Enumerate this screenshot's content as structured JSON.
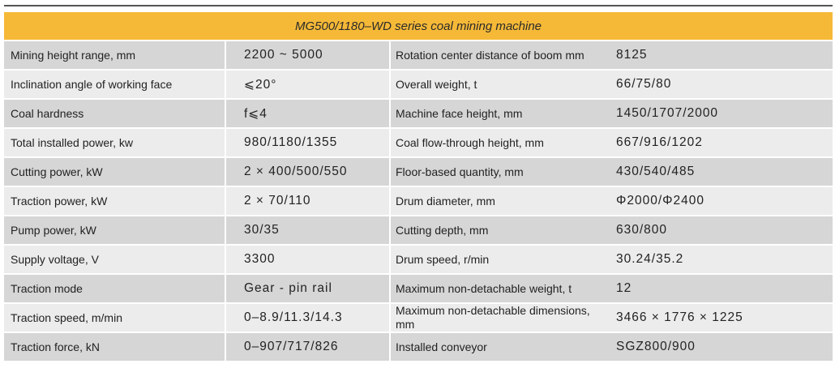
{
  "title": "MG500/1180–WD series coal mining machine",
  "rows": [
    {
      "label": "Mining height range, mm",
      "value": "2200 ~ 5000",
      "label2": "Rotation center distance of boom mm",
      "value2": "8125"
    },
    {
      "label": "Inclination angle of working face",
      "value": "⩽20°",
      "label2": "Overall weight, t",
      "value2": "66/75/80"
    },
    {
      "label": "Coal hardness",
      "value": "f⩽4",
      "label2": "Machine face height, mm",
      "value2": "1450/1707/2000"
    },
    {
      "label": "Total installed power, kw",
      "value": "980/1180/1355",
      "label2": "Coal flow-through height, mm",
      "value2": "667/916/1202"
    },
    {
      "label": "Cutting power, kW",
      "value": "2 × 400/500/550",
      "label2": "Floor-based quantity, mm",
      "value2": "430/540/485"
    },
    {
      "label": "Traction power, kW",
      "value": "2 × 70/110",
      "label2": "Drum diameter, mm",
      "value2": "Φ2000/Φ2400"
    },
    {
      "label": "Pump power, kW",
      "value": "30/35",
      "label2": "Cutting depth, mm",
      "value2": "630/800"
    },
    {
      "label": "Supply voltage, V",
      "value": "3300",
      "label2": "Drum speed, r/min",
      "value2": "30.24/35.2"
    },
    {
      "label": "Traction mode",
      "value": "Gear - pin rail",
      "label2": "Maximum non-detachable weight, t",
      "value2": "12"
    },
    {
      "label": "Traction speed, m/min",
      "value": "0–8.9/11.3/14.3",
      "label2": "Maximum non-detachable dimensions, mm",
      "value2": "3466 × 1776 × 1225"
    },
    {
      "label": "Traction force, kN",
      "value": "0–907/717/826",
      "label2": "Installed conveyor",
      "value2": "SGZ800/900"
    }
  ],
  "colors": {
    "header": "#f6b937",
    "row_dark": "#d6d6d6",
    "row_light": "#ececec"
  }
}
